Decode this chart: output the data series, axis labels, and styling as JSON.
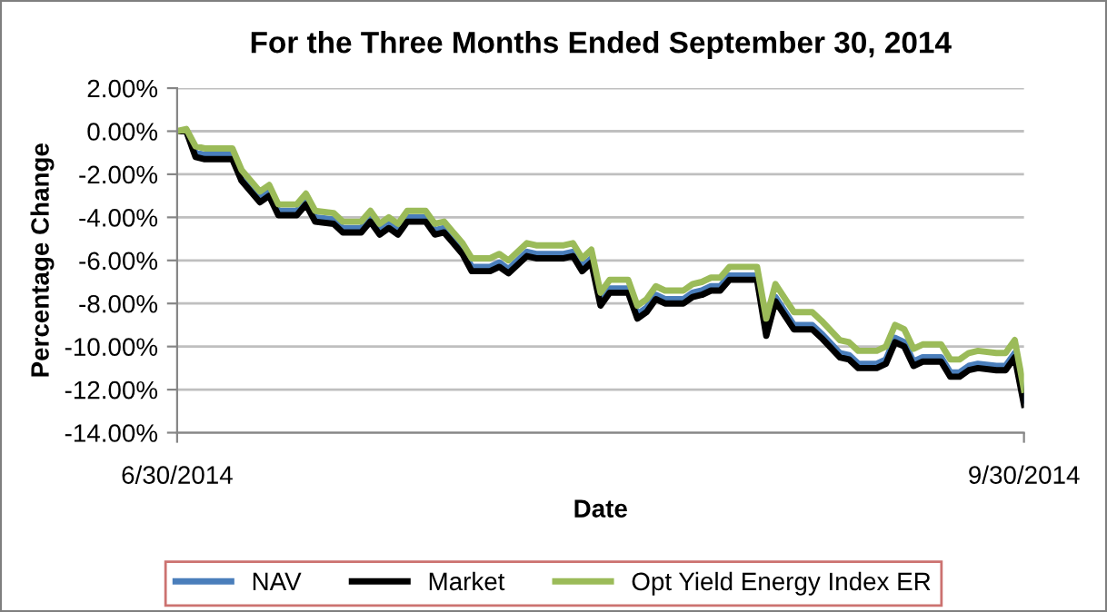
{
  "chart_data": {
    "type": "line",
    "title": "For the Three Months Ended September 30, 2014",
    "xlabel": "Date",
    "ylabel": "Percentage Change",
    "x": [
      "2014-06-30",
      "2014-07-01",
      "2014-07-02",
      "2014-07-03",
      "2014-07-06",
      "2014-07-07",
      "2014-07-09",
      "2014-07-10",
      "2014-07-11",
      "2014-07-13",
      "2014-07-14",
      "2014-07-15",
      "2014-07-17",
      "2014-07-18",
      "2014-07-20",
      "2014-07-21",
      "2014-07-22",
      "2014-07-23",
      "2014-07-24",
      "2014-07-25",
      "2014-07-27",
      "2014-07-28",
      "2014-07-29",
      "2014-07-30",
      "2014-07-31",
      "2014-08-01",
      "2014-08-03",
      "2014-08-04",
      "2014-08-05",
      "2014-08-07",
      "2014-08-08",
      "2014-08-11",
      "2014-08-12",
      "2014-08-13",
      "2014-08-14",
      "2014-08-15",
      "2014-08-16",
      "2014-08-18",
      "2014-08-19",
      "2014-08-20",
      "2014-08-21",
      "2014-08-22",
      "2014-08-24",
      "2014-08-25",
      "2014-08-26",
      "2014-08-27",
      "2014-08-28",
      "2014-08-29",
      "2014-09-01",
      "2014-09-02",
      "2014-09-03",
      "2014-09-05",
      "2014-09-07",
      "2014-09-08",
      "2014-09-10",
      "2014-09-11",
      "2014-09-12",
      "2014-09-14",
      "2014-09-15",
      "2014-09-16",
      "2014-09-17",
      "2014-09-18",
      "2014-09-19",
      "2014-09-21",
      "2014-09-22",
      "2014-09-23",
      "2014-09-24",
      "2014-09-25",
      "2014-09-27",
      "2014-09-28",
      "2014-09-29",
      "2014-09-30"
    ],
    "series": [
      {
        "name": "NAV",
        "color": "#4a7ebb",
        "values": [
          0,
          0.0,
          -1.0,
          -1.1,
          -1.1,
          -2.1,
          -3.1,
          -2.8,
          -3.7,
          -3.7,
          -3.2,
          -4.0,
          -4.1,
          -4.5,
          -4.5,
          -4.0,
          -4.6,
          -4.3,
          -4.6,
          -4.0,
          -4.0,
          -4.6,
          -4.5,
          -5.0,
          -5.5,
          -6.3,
          -6.3,
          -6.1,
          -6.4,
          -5.6,
          -5.7,
          -5.7,
          -5.6,
          -6.3,
          -5.9,
          -7.9,
          -7.3,
          -7.3,
          -8.5,
          -8.2,
          -7.6,
          -7.8,
          -7.8,
          -7.5,
          -7.4,
          -7.2,
          -7.2,
          -6.7,
          -6.7,
          -9.3,
          -7.7,
          -9.0,
          -9.0,
          -9.4,
          -10.3,
          -10.4,
          -10.8,
          -10.8,
          -10.6,
          -9.6,
          -9.8,
          -10.7,
          -10.5,
          -10.5,
          -11.2,
          -11.2,
          -10.9,
          -10.8,
          -10.9,
          -10.9,
          -10.3,
          -12.5
        ]
      },
      {
        "name": "Market",
        "color": "#000000",
        "values": [
          0,
          0.0,
          -1.2,
          -1.3,
          -1.3,
          -2.3,
          -3.3,
          -3.0,
          -3.9,
          -3.9,
          -3.4,
          -4.2,
          -4.3,
          -4.7,
          -4.7,
          -4.2,
          -4.8,
          -4.5,
          -4.8,
          -4.2,
          -4.2,
          -4.8,
          -4.7,
          -5.2,
          -5.7,
          -6.5,
          -6.5,
          -6.3,
          -6.6,
          -5.8,
          -5.9,
          -5.9,
          -5.8,
          -6.5,
          -6.1,
          -8.1,
          -7.5,
          -7.5,
          -8.7,
          -8.4,
          -7.8,
          -8.0,
          -8.0,
          -7.7,
          -7.6,
          -7.4,
          -7.4,
          -6.9,
          -6.9,
          -9.5,
          -7.9,
          -9.2,
          -9.2,
          -9.6,
          -10.5,
          -10.6,
          -11.0,
          -11.0,
          -10.8,
          -9.8,
          -10.0,
          -10.9,
          -10.7,
          -10.7,
          -11.4,
          -11.4,
          -11.1,
          -11.0,
          -11.1,
          -11.1,
          -10.5,
          -12.7
        ]
      },
      {
        "name": "Opt Yield Energy Index ER",
        "color": "#9bbb59",
        "values": [
          0,
          0.1,
          -0.7,
          -0.8,
          -0.8,
          -1.8,
          -2.8,
          -2.5,
          -3.4,
          -3.4,
          -2.9,
          -3.7,
          -3.8,
          -4.2,
          -4.2,
          -3.7,
          -4.3,
          -4.0,
          -4.3,
          -3.7,
          -3.7,
          -4.3,
          -4.2,
          -4.7,
          -5.2,
          -5.9,
          -5.9,
          -5.7,
          -6.0,
          -5.2,
          -5.3,
          -5.3,
          -5.2,
          -5.9,
          -5.5,
          -7.5,
          -6.9,
          -6.9,
          -8.1,
          -7.8,
          -7.2,
          -7.4,
          -7.4,
          -7.1,
          -7.0,
          -6.8,
          -6.8,
          -6.3,
          -6.3,
          -8.7,
          -7.1,
          -8.4,
          -8.4,
          -8.8,
          -9.7,
          -9.8,
          -10.2,
          -10.2,
          -10.0,
          -9.0,
          -9.2,
          -10.1,
          -9.9,
          -9.9,
          -10.6,
          -10.6,
          -10.3,
          -10.2,
          -10.3,
          -10.3,
          -9.7,
          -12.0
        ]
      }
    ],
    "xlim": [
      "2014-06-30",
      "2014-09-30"
    ],
    "xticks": [
      {
        "value": "2014-06-30",
        "label": "6/30/2014"
      },
      {
        "value": "2014-09-30",
        "label": "9/30/2014"
      }
    ],
    "ylim": [
      -14,
      2
    ],
    "yticks": [
      {
        "value": 2,
        "label": "2.00%"
      },
      {
        "value": 0,
        "label": "0.00%"
      },
      {
        "value": -2,
        "label": "-2.00%"
      },
      {
        "value": -4,
        "label": "-4.00%"
      },
      {
        "value": -6,
        "label": "-6.00%"
      },
      {
        "value": -8,
        "label": "-8.00%"
      },
      {
        "value": -10,
        "label": "-10.00%"
      },
      {
        "value": -12,
        "label": "-12.00%"
      },
      {
        "value": -14,
        "label": "-14.00%"
      }
    ],
    "grid": "y",
    "legend": "bottom"
  }
}
